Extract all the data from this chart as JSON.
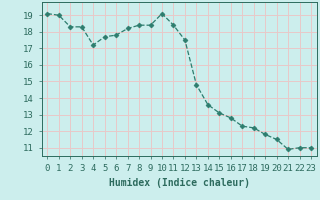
{
  "x": [
    0,
    1,
    2,
    3,
    4,
    5,
    6,
    7,
    8,
    9,
    10,
    11,
    12,
    13,
    14,
    15,
    16,
    17,
    18,
    19,
    20,
    21,
    22,
    23
  ],
  "y": [
    19.1,
    19.0,
    18.3,
    18.3,
    17.2,
    17.7,
    17.8,
    18.2,
    18.4,
    18.4,
    19.1,
    18.4,
    17.5,
    14.8,
    13.6,
    13.1,
    12.8,
    12.3,
    12.2,
    11.8,
    11.5,
    10.9,
    11.0,
    11.0
  ],
  "line_color": "#2d7d6e",
  "marker": "D",
  "marker_size": 2.5,
  "background_color": "#cceeed",
  "grid_color": "#e8c8c8",
  "xlabel": "Humidex (Indice chaleur)",
  "ylabel_ticks": [
    11,
    12,
    13,
    14,
    15,
    16,
    17,
    18,
    19
  ],
  "xlim": [
    -0.5,
    23.5
  ],
  "ylim": [
    10.5,
    19.8
  ],
  "xtick_labels": [
    "0",
    "1",
    "2",
    "3",
    "4",
    "5",
    "6",
    "7",
    "8",
    "9",
    "10",
    "11",
    "12",
    "13",
    "14",
    "15",
    "16",
    "17",
    "18",
    "19",
    "20",
    "21",
    "22",
    "23"
  ],
  "font_color": "#2d6b5e",
  "axis_fontsize": 7,
  "tick_fontsize": 6.5
}
